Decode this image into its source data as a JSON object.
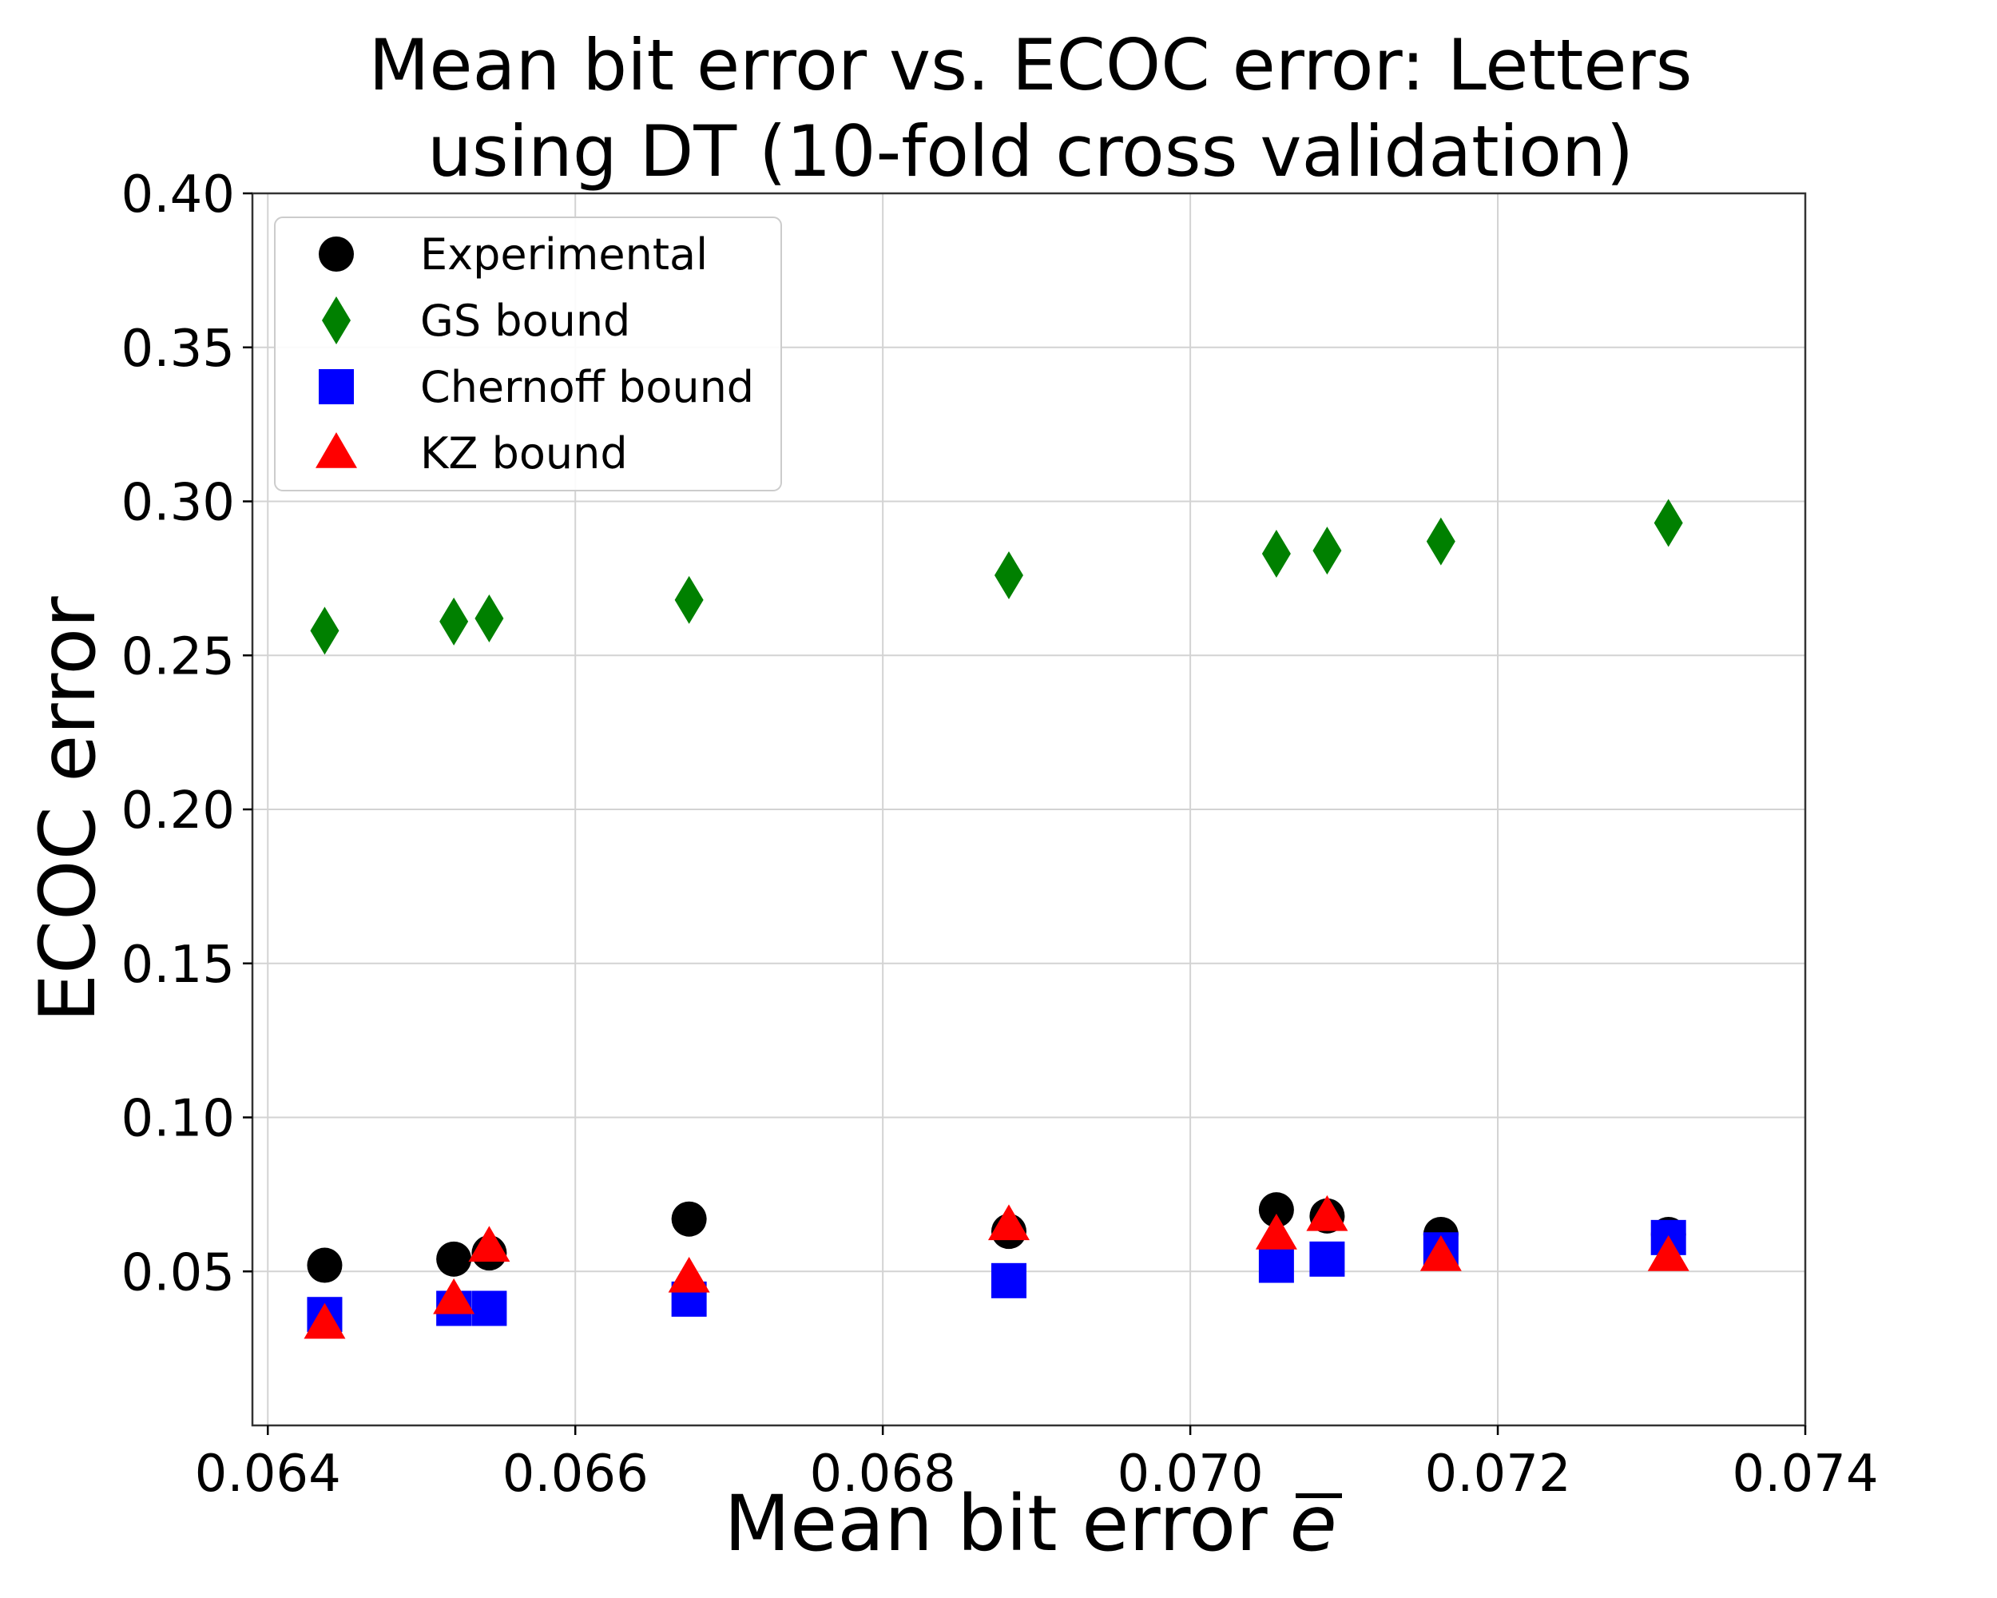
{
  "chart_data": {
    "type": "scatter",
    "title_lines": [
      "Mean bit error vs. ECOC error: Letters",
      "using DT (10-fold cross validation)"
    ],
    "xlabel": "Mean bit error",
    "xlabel_symbol": "e",
    "ylabel": "ECOC error",
    "xlim": [
      0.0639,
      0.074
    ],
    "ylim": [
      0.0,
      0.4
    ],
    "x_ticks": [
      0.064,
      0.066,
      0.068,
      0.07,
      0.072,
      0.074
    ],
    "x_tick_labels": [
      "0.064",
      "0.066",
      "0.068",
      "0.070",
      "0.072",
      "0.074"
    ],
    "y_ticks": [
      0.05,
      0.1,
      0.15,
      0.2,
      0.25,
      0.3,
      0.35,
      0.4
    ],
    "y_tick_labels": [
      "0.05",
      "0.10",
      "0.15",
      "0.20",
      "0.25",
      "0.30",
      "0.35",
      "0.40"
    ],
    "grid": true,
    "legend_position": "top-left",
    "x": [
      0.06437,
      0.06521,
      0.06544,
      0.06674,
      0.06882,
      0.07056,
      0.07089,
      0.07163,
      0.07311
    ],
    "series": [
      {
        "name": "Experimental",
        "marker": "circle",
        "color": "#000000",
        "values": [
          0.052,
          0.054,
          0.056,
          0.067,
          0.063,
          0.07,
          0.068,
          0.062,
          0.062
        ]
      },
      {
        "name": "GS bound",
        "marker": "diamond",
        "color": "#008000",
        "values": [
          0.258,
          0.261,
          0.262,
          0.268,
          0.276,
          0.283,
          0.284,
          0.287,
          0.293
        ]
      },
      {
        "name": "Chernoff bound",
        "marker": "square",
        "color": "#0000ff",
        "values": [
          0.036,
          0.038,
          0.038,
          0.041,
          0.047,
          0.052,
          0.054,
          0.057,
          0.061
        ]
      },
      {
        "name": "KZ bound",
        "marker": "triangle",
        "color": "#ff0000",
        "values": [
          0.033,
          0.041,
          0.058,
          0.048,
          0.065,
          0.062,
          0.068,
          0.055,
          0.055
        ]
      }
    ]
  }
}
